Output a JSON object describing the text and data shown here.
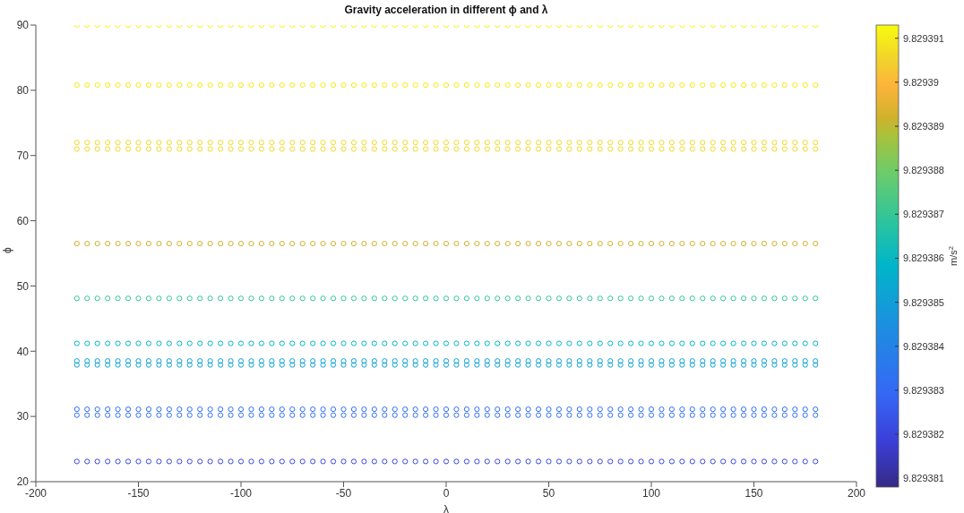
{
  "chart_data": {
    "type": "scatter",
    "title": "Gravity acceleration in different ϕ and λ",
    "xlabel": "λ",
    "ylabel": "ϕ",
    "clabel": "m/s$^{2}$",
    "marker": "circle",
    "xlim": [
      -200,
      200
    ],
    "xticks": [
      -200,
      -150,
      -100,
      -50,
      0,
      50,
      100,
      150,
      200
    ],
    "ylim": [
      20,
      90
    ],
    "yticks": [
      20,
      30,
      40,
      50,
      60,
      70,
      80,
      90
    ],
    "clim": [
      9.8293808,
      9.8293913
    ],
    "cticks": [
      9.829381,
      9.829382,
      9.829383,
      9.829384,
      9.829385,
      9.829386,
      9.829387,
      9.829388,
      9.829389,
      9.82939,
      9.829391
    ],
    "x": [
      -180,
      -175,
      -170,
      -165,
      -160,
      -155,
      -150,
      -145,
      -140,
      -135,
      -130,
      -125,
      -120,
      -115,
      -110,
      -105,
      -100,
      -95,
      -90,
      -85,
      -80,
      -75,
      -70,
      -65,
      -60,
      -55,
      -50,
      -45,
      -40,
      -35,
      -30,
      -25,
      -20,
      -15,
      -10,
      -5,
      0,
      5,
      10,
      15,
      20,
      25,
      30,
      35,
      40,
      45,
      50,
      55,
      60,
      65,
      70,
      75,
      80,
      85,
      90,
      95,
      100,
      105,
      110,
      115,
      120,
      125,
      130,
      135,
      140,
      145,
      150,
      155,
      160,
      165,
      170,
      175,
      180
    ],
    "series": [
      {
        "values": [
          90,
          90,
          90,
          90,
          90,
          90,
          90,
          90,
          90,
          90,
          90,
          90,
          90,
          90,
          90,
          90,
          90,
          90,
          90,
          90,
          90,
          90,
          90,
          90,
          90,
          90,
          90,
          90,
          90,
          90,
          90,
          90,
          90,
          90,
          90,
          90,
          90,
          90,
          90,
          90,
          90,
          90,
          90,
          90,
          90,
          90,
          90,
          90,
          90,
          90,
          90,
          90,
          90,
          90,
          90,
          90,
          90,
          90,
          90,
          90,
          90,
          90,
          90,
          90,
          90,
          90,
          90,
          90,
          90,
          90,
          90,
          90,
          90
        ],
        "cvalues": [
          9.8293912,
          9.8293912,
          9.8293912,
          9.8293912,
          9.8293912,
          9.8293912,
          9.8293912,
          9.8293912,
          9.8293912,
          9.8293912,
          9.8293912,
          9.8293912,
          9.8293912,
          9.8293912,
          9.8293912,
          9.8293912,
          9.8293912,
          9.8293912,
          9.8293912,
          9.8293912,
          9.8293912,
          9.8293912,
          9.8293912,
          9.8293912,
          9.8293912,
          9.8293912,
          9.8293912,
          9.8293912,
          9.8293912,
          9.8293912,
          9.8293912,
          9.8293912,
          9.8293912,
          9.8293912,
          9.8293912,
          9.8293912,
          9.8293912,
          9.8293912,
          9.8293912,
          9.8293912,
          9.8293912,
          9.8293912,
          9.8293912,
          9.8293912,
          9.8293912,
          9.8293912,
          9.8293912,
          9.8293912,
          9.8293912,
          9.8293912,
          9.8293912,
          9.8293912,
          9.8293912,
          9.8293912,
          9.8293912,
          9.8293912,
          9.8293912,
          9.8293912,
          9.8293912,
          9.8293912,
          9.8293912,
          9.8293912,
          9.8293912,
          9.8293912,
          9.8293912,
          9.8293912,
          9.8293912,
          9.8293912,
          9.8293912,
          9.8293912,
          9.8293912,
          9.8293912,
          9.8293912
        ]
      },
      {
        "values": [
          80.8,
          80.8,
          80.8,
          80.8,
          80.8,
          80.8,
          80.8,
          80.8,
          80.8,
          80.8,
          80.8,
          80.8,
          80.8,
          80.8,
          80.8,
          80.8,
          80.8,
          80.8,
          80.8,
          80.8,
          80.8,
          80.8,
          80.8,
          80.8,
          80.8,
          80.8,
          80.8,
          80.8,
          80.8,
          80.8,
          80.8,
          80.8,
          80.8,
          80.8,
          80.8,
          80.8,
          80.8,
          80.8,
          80.8,
          80.8,
          80.8,
          80.8,
          80.8,
          80.8,
          80.8,
          80.8,
          80.8,
          80.8,
          80.8,
          80.8,
          80.8,
          80.8,
          80.8,
          80.8,
          80.8,
          80.8,
          80.8,
          80.8,
          80.8,
          80.8,
          80.8,
          80.8,
          80.8,
          80.8,
          80.8,
          80.8,
          80.8,
          80.8,
          80.8,
          80.8,
          80.8,
          80.8,
          80.8
        ],
        "cvalues": [
          9.829391,
          9.829391,
          9.829391,
          9.829391,
          9.829391,
          9.829391,
          9.829391,
          9.829391,
          9.829391,
          9.829391,
          9.829391,
          9.829391,
          9.829391,
          9.829391,
          9.829391,
          9.829391,
          9.829391,
          9.829391,
          9.829391,
          9.829391,
          9.829391,
          9.829391,
          9.829391,
          9.829391,
          9.829391,
          9.829391,
          9.829391,
          9.829391,
          9.829391,
          9.829391,
          9.829391,
          9.829391,
          9.829391,
          9.829391,
          9.829391,
          9.829391,
          9.829391,
          9.829391,
          9.829391,
          9.829391,
          9.829391,
          9.829391,
          9.829391,
          9.829391,
          9.829391,
          9.829391,
          9.829391,
          9.829391,
          9.829391,
          9.829391,
          9.829391,
          9.829391,
          9.829391,
          9.829391,
          9.829391,
          9.829391,
          9.829391,
          9.829391,
          9.829391,
          9.829391,
          9.829391,
          9.829391,
          9.829391,
          9.829391,
          9.829391,
          9.829391,
          9.829391,
          9.829391,
          9.829391,
          9.829391,
          9.829391,
          9.829391,
          9.829391
        ]
      },
      {
        "values": [
          72,
          72,
          72,
          72,
          72,
          72,
          72,
          72,
          72,
          72,
          72,
          72,
          72,
          72,
          72,
          72,
          72,
          72,
          72,
          72,
          72,
          72,
          72,
          72,
          72,
          72,
          72,
          72,
          72,
          72,
          72,
          72,
          72,
          72,
          72,
          72,
          72,
          72,
          72,
          72,
          72,
          72,
          72,
          72,
          72,
          72,
          72,
          72,
          72,
          72,
          72,
          72,
          72,
          72,
          72,
          72,
          72,
          72,
          72,
          72,
          72,
          72,
          72,
          72,
          72,
          72,
          72,
          72,
          72,
          72,
          72,
          72,
          72
        ],
        "cvalues": [
          9.8293907,
          9.8293907,
          9.8293907,
          9.8293907,
          9.8293907,
          9.8293907,
          9.8293907,
          9.8293907,
          9.8293907,
          9.8293907,
          9.8293907,
          9.8293907,
          9.8293907,
          9.8293907,
          9.8293907,
          9.8293907,
          9.8293907,
          9.8293907,
          9.8293907,
          9.8293907,
          9.8293907,
          9.8293907,
          9.8293907,
          9.8293907,
          9.8293907,
          9.8293907,
          9.8293907,
          9.8293907,
          9.8293907,
          9.8293907,
          9.8293907,
          9.8293907,
          9.8293907,
          9.8293907,
          9.8293907,
          9.8293907,
          9.8293907,
          9.8293907,
          9.8293907,
          9.8293907,
          9.8293907,
          9.8293907,
          9.8293907,
          9.8293907,
          9.8293907,
          9.8293907,
          9.8293907,
          9.8293907,
          9.8293907,
          9.8293907,
          9.8293907,
          9.8293907,
          9.8293907,
          9.8293907,
          9.8293907,
          9.8293907,
          9.8293907,
          9.8293907,
          9.8293907,
          9.8293907,
          9.8293907,
          9.8293907,
          9.8293907,
          9.8293907,
          9.8293907,
          9.8293907,
          9.8293907,
          9.8293907,
          9.8293907,
          9.8293907,
          9.8293907,
          9.8293907,
          9.8293907
        ]
      },
      {
        "values": [
          71,
          71,
          71,
          71,
          71,
          71,
          71,
          71,
          71,
          71,
          71,
          71,
          71,
          71,
          71,
          71,
          71,
          71,
          71,
          71,
          71,
          71,
          71,
          71,
          71,
          71,
          71,
          71,
          71,
          71,
          71,
          71,
          71,
          71,
          71,
          71,
          71,
          71,
          71,
          71,
          71,
          71,
          71,
          71,
          71,
          71,
          71,
          71,
          71,
          71,
          71,
          71,
          71,
          71,
          71,
          71,
          71,
          71,
          71,
          71,
          71,
          71,
          71,
          71,
          71,
          71,
          71,
          71,
          71,
          71,
          71,
          71,
          71
        ],
        "cvalues": [
          9.8293906,
          9.8293906,
          9.8293906,
          9.8293906,
          9.8293906,
          9.8293906,
          9.8293906,
          9.8293906,
          9.8293906,
          9.8293906,
          9.8293906,
          9.8293906,
          9.8293906,
          9.8293906,
          9.8293906,
          9.8293906,
          9.8293906,
          9.8293906,
          9.8293906,
          9.8293906,
          9.8293906,
          9.8293906,
          9.8293906,
          9.8293906,
          9.8293906,
          9.8293906,
          9.8293906,
          9.8293906,
          9.8293906,
          9.8293906,
          9.8293906,
          9.8293906,
          9.8293906,
          9.8293906,
          9.8293906,
          9.8293906,
          9.8293906,
          9.8293906,
          9.8293906,
          9.8293906,
          9.8293906,
          9.8293906,
          9.8293906,
          9.8293906,
          9.8293906,
          9.8293906,
          9.8293906,
          9.8293906,
          9.8293906,
          9.8293906,
          9.8293906,
          9.8293906,
          9.8293906,
          9.8293906,
          9.8293906,
          9.8293906,
          9.8293906,
          9.8293906,
          9.8293906,
          9.8293906,
          9.8293906,
          9.8293906,
          9.8293906,
          9.8293906,
          9.8293906,
          9.8293906,
          9.8293906,
          9.8293906,
          9.8293906,
          9.8293906,
          9.8293906,
          9.8293906,
          9.8293906
        ]
      },
      {
        "values": [
          56.5,
          56.5,
          56.5,
          56.5,
          56.5,
          56.5,
          56.5,
          56.5,
          56.5,
          56.5,
          56.5,
          56.5,
          56.5,
          56.5,
          56.5,
          56.5,
          56.5,
          56.5,
          56.5,
          56.5,
          56.5,
          56.5,
          56.5,
          56.5,
          56.5,
          56.5,
          56.5,
          56.5,
          56.5,
          56.5,
          56.5,
          56.5,
          56.5,
          56.5,
          56.5,
          56.5,
          56.5,
          56.5,
          56.5,
          56.5,
          56.5,
          56.5,
          56.5,
          56.5,
          56.5,
          56.5,
          56.5,
          56.5,
          56.5,
          56.5,
          56.5,
          56.5,
          56.5,
          56.5,
          56.5,
          56.5,
          56.5,
          56.5,
          56.5,
          56.5,
          56.5,
          56.5,
          56.5,
          56.5,
          56.5,
          56.5,
          56.5,
          56.5,
          56.5,
          56.5,
          56.5,
          56.5,
          56.5
        ],
        "cvalues": [
          9.8293892,
          9.8293892,
          9.8293892,
          9.8293892,
          9.8293892,
          9.8293892,
          9.8293892,
          9.8293892,
          9.8293892,
          9.8293892,
          9.8293892,
          9.8293892,
          9.8293892,
          9.8293892,
          9.8293892,
          9.8293892,
          9.8293892,
          9.8293892,
          9.8293892,
          9.8293892,
          9.8293892,
          9.8293892,
          9.8293892,
          9.8293892,
          9.8293892,
          9.8293892,
          9.8293892,
          9.8293892,
          9.8293892,
          9.8293892,
          9.8293892,
          9.8293892,
          9.8293892,
          9.8293892,
          9.8293892,
          9.8293892,
          9.8293892,
          9.8293892,
          9.8293892,
          9.8293892,
          9.8293892,
          9.8293892,
          9.8293892,
          9.8293892,
          9.8293892,
          9.8293892,
          9.8293892,
          9.8293892,
          9.8293892,
          9.8293892,
          9.8293892,
          9.8293892,
          9.8293892,
          9.8293892,
          9.8293892,
          9.8293892,
          9.8293892,
          9.8293892,
          9.8293892,
          9.8293892,
          9.8293892,
          9.8293892,
          9.8293892,
          9.8293892,
          9.8293892,
          9.8293892,
          9.8293892,
          9.8293892,
          9.8293892,
          9.8293892,
          9.8293892,
          9.8293892,
          9.8293892
        ]
      },
      {
        "values": [
          48.1,
          48.1,
          48.1,
          48.1,
          48.1,
          48.1,
          48.1,
          48.1,
          48.1,
          48.1,
          48.1,
          48.1,
          48.1,
          48.1,
          48.1,
          48.1,
          48.1,
          48.1,
          48.1,
          48.1,
          48.1,
          48.1,
          48.1,
          48.1,
          48.1,
          48.1,
          48.1,
          48.1,
          48.1,
          48.1,
          48.1,
          48.1,
          48.1,
          48.1,
          48.1,
          48.1,
          48.1,
          48.1,
          48.1,
          48.1,
          48.1,
          48.1,
          48.1,
          48.1,
          48.1,
          48.1,
          48.1,
          48.1,
          48.1,
          48.1,
          48.1,
          48.1,
          48.1,
          48.1,
          48.1,
          48.1,
          48.1,
          48.1,
          48.1,
          48.1,
          48.1,
          48.1,
          48.1,
          48.1,
          48.1,
          48.1,
          48.1,
          48.1,
          48.1,
          48.1,
          48.1,
          48.1,
          48.1
        ],
        "cvalues": [
          9.8293869,
          9.8293869,
          9.8293869,
          9.8293869,
          9.8293869,
          9.8293869,
          9.8293869,
          9.8293869,
          9.8293869,
          9.8293869,
          9.8293869,
          9.8293869,
          9.8293869,
          9.8293869,
          9.8293869,
          9.8293869,
          9.8293869,
          9.8293869,
          9.8293869,
          9.8293869,
          9.8293869,
          9.8293869,
          9.8293869,
          9.8293869,
          9.8293869,
          9.8293869,
          9.8293869,
          9.8293869,
          9.8293869,
          9.8293869,
          9.8293869,
          9.8293869,
          9.8293869,
          9.8293869,
          9.8293869,
          9.8293869,
          9.8293869,
          9.8293869,
          9.8293869,
          9.8293869,
          9.8293869,
          9.8293869,
          9.8293869,
          9.8293869,
          9.8293869,
          9.8293869,
          9.8293869,
          9.8293869,
          9.8293869,
          9.8293869,
          9.8293869,
          9.8293869,
          9.8293869,
          9.8293869,
          9.8293869,
          9.8293869,
          9.8293869,
          9.8293869,
          9.8293869,
          9.8293869,
          9.8293869,
          9.8293869,
          9.8293869,
          9.8293869,
          9.8293869,
          9.8293869,
          9.8293869,
          9.8293869,
          9.8293869,
          9.8293869,
          9.8293869,
          9.8293869,
          9.8293869
        ]
      },
      {
        "values": [
          41.2,
          41.2,
          41.2,
          41.2,
          41.2,
          41.2,
          41.2,
          41.2,
          41.2,
          41.2,
          41.2,
          41.2,
          41.2,
          41.2,
          41.2,
          41.2,
          41.2,
          41.2,
          41.2,
          41.2,
          41.2,
          41.2,
          41.2,
          41.2,
          41.2,
          41.2,
          41.2,
          41.2,
          41.2,
          41.2,
          41.2,
          41.2,
          41.2,
          41.2,
          41.2,
          41.2,
          41.2,
          41.2,
          41.2,
          41.2,
          41.2,
          41.2,
          41.2,
          41.2,
          41.2,
          41.2,
          41.2,
          41.2,
          41.2,
          41.2,
          41.2,
          41.2,
          41.2,
          41.2,
          41.2,
          41.2,
          41.2,
          41.2,
          41.2,
          41.2,
          41.2,
          41.2,
          41.2,
          41.2,
          41.2,
          41.2,
          41.2,
          41.2,
          41.2,
          41.2,
          41.2,
          41.2,
          41.2
        ],
        "cvalues": [
          9.8293859,
          9.8293859,
          9.8293859,
          9.8293859,
          9.8293859,
          9.8293859,
          9.8293859,
          9.8293859,
          9.8293859,
          9.8293859,
          9.8293859,
          9.8293859,
          9.8293859,
          9.8293859,
          9.8293859,
          9.8293859,
          9.8293859,
          9.8293859,
          9.8293859,
          9.8293859,
          9.8293859,
          9.8293859,
          9.8293859,
          9.8293859,
          9.8293859,
          9.8293859,
          9.8293859,
          9.8293859,
          9.8293859,
          9.8293859,
          9.8293859,
          9.8293859,
          9.8293859,
          9.8293859,
          9.8293859,
          9.8293859,
          9.8293859,
          9.8293859,
          9.8293859,
          9.8293859,
          9.8293859,
          9.8293859,
          9.8293859,
          9.8293859,
          9.8293859,
          9.8293859,
          9.8293859,
          9.8293859,
          9.8293859,
          9.8293859,
          9.8293859,
          9.8293859,
          9.8293859,
          9.8293859,
          9.8293859,
          9.8293859,
          9.8293859,
          9.8293859,
          9.8293859,
          9.8293859,
          9.8293859,
          9.8293859,
          9.8293859,
          9.8293859,
          9.8293859,
          9.8293859,
          9.8293859,
          9.8293859,
          9.8293859,
          9.8293859,
          9.8293859,
          9.8293859,
          9.8293859
        ]
      },
      {
        "values": [
          38.5,
          38.5,
          38.5,
          38.5,
          38.5,
          38.5,
          38.5,
          38.5,
          38.5,
          38.5,
          38.5,
          38.5,
          38.5,
          38.5,
          38.5,
          38.5,
          38.5,
          38.5,
          38.5,
          38.5,
          38.5,
          38.5,
          38.5,
          38.5,
          38.5,
          38.5,
          38.5,
          38.5,
          38.5,
          38.5,
          38.5,
          38.5,
          38.5,
          38.5,
          38.5,
          38.5,
          38.5,
          38.5,
          38.5,
          38.5,
          38.5,
          38.5,
          38.5,
          38.5,
          38.5,
          38.5,
          38.5,
          38.5,
          38.5,
          38.5,
          38.5,
          38.5,
          38.5,
          38.5,
          38.5,
          38.5,
          38.5,
          38.5,
          38.5,
          38.5,
          38.5,
          38.5,
          38.5,
          38.5,
          38.5,
          38.5,
          38.5,
          38.5,
          38.5,
          38.5,
          38.5,
          38.5,
          38.5
        ],
        "cvalues": [
          9.8293852,
          9.8293852,
          9.8293852,
          9.8293852,
          9.8293852,
          9.8293852,
          9.8293852,
          9.8293852,
          9.8293852,
          9.8293852,
          9.8293852,
          9.8293852,
          9.8293852,
          9.8293852,
          9.8293852,
          9.8293852,
          9.8293852,
          9.8293852,
          9.8293852,
          9.8293852,
          9.8293852,
          9.8293852,
          9.8293852,
          9.8293852,
          9.8293852,
          9.8293852,
          9.8293852,
          9.8293852,
          9.8293852,
          9.8293852,
          9.8293852,
          9.8293852,
          9.8293852,
          9.8293852,
          9.8293852,
          9.8293852,
          9.8293852,
          9.8293852,
          9.8293852,
          9.8293852,
          9.8293852,
          9.8293852,
          9.8293852,
          9.8293852,
          9.8293852,
          9.8293852,
          9.8293852,
          9.8293852,
          9.8293852,
          9.8293852,
          9.8293852,
          9.8293852,
          9.8293852,
          9.8293852,
          9.8293852,
          9.8293852,
          9.8293852,
          9.8293852,
          9.8293852,
          9.8293852,
          9.8293852,
          9.8293852,
          9.8293852,
          9.8293852,
          9.8293852,
          9.8293852,
          9.8293852,
          9.8293852,
          9.8293852,
          9.8293852,
          9.8293852,
          9.8293852,
          9.8293852
        ]
      },
      {
        "values": [
          37.9,
          37.9,
          37.9,
          37.9,
          37.9,
          37.9,
          37.9,
          37.9,
          37.9,
          37.9,
          37.9,
          37.9,
          37.9,
          37.9,
          37.9,
          37.9,
          37.9,
          37.9,
          37.9,
          37.9,
          37.9,
          37.9,
          37.9,
          37.9,
          37.9,
          37.9,
          37.9,
          37.9,
          37.9,
          37.9,
          37.9,
          37.9,
          37.9,
          37.9,
          37.9,
          37.9,
          37.9,
          37.9,
          37.9,
          37.9,
          37.9,
          37.9,
          37.9,
          37.9,
          37.9,
          37.9,
          37.9,
          37.9,
          37.9,
          37.9,
          37.9,
          37.9,
          37.9,
          37.9,
          37.9,
          37.9,
          37.9,
          37.9,
          37.9,
          37.9,
          37.9,
          37.9,
          37.9,
          37.9,
          37.9,
          37.9,
          37.9,
          37.9,
          37.9,
          37.9,
          37.9,
          37.9,
          37.9
        ],
        "cvalues": [
          9.8293851,
          9.8293851,
          9.8293851,
          9.8293851,
          9.8293851,
          9.8293851,
          9.8293851,
          9.8293851,
          9.8293851,
          9.8293851,
          9.8293851,
          9.8293851,
          9.8293851,
          9.8293851,
          9.8293851,
          9.8293851,
          9.8293851,
          9.8293851,
          9.8293851,
          9.8293851,
          9.8293851,
          9.8293851,
          9.8293851,
          9.8293851,
          9.8293851,
          9.8293851,
          9.8293851,
          9.8293851,
          9.8293851,
          9.8293851,
          9.8293851,
          9.8293851,
          9.8293851,
          9.8293851,
          9.8293851,
          9.8293851,
          9.8293851,
          9.8293851,
          9.8293851,
          9.8293851,
          9.8293851,
          9.8293851,
          9.8293851,
          9.8293851,
          9.8293851,
          9.8293851,
          9.8293851,
          9.8293851,
          9.8293851,
          9.8293851,
          9.8293851,
          9.8293851,
          9.8293851,
          9.8293851,
          9.8293851,
          9.8293851,
          9.8293851,
          9.8293851,
          9.8293851,
          9.8293851,
          9.8293851,
          9.8293851,
          9.8293851,
          9.8293851,
          9.8293851,
          9.8293851,
          9.8293851,
          9.8293851,
          9.8293851,
          9.8293851,
          9.8293851,
          9.8293851,
          9.8293851
        ]
      },
      {
        "values": [
          31.1,
          31.1,
          31.1,
          31.1,
          31.1,
          31.1,
          31.1,
          31.1,
          31.1,
          31.1,
          31.1,
          31.1,
          31.1,
          31.1,
          31.1,
          31.1,
          31.1,
          31.1,
          31.1,
          31.1,
          31.1,
          31.1,
          31.1,
          31.1,
          31.1,
          31.1,
          31.1,
          31.1,
          31.1,
          31.1,
          31.1,
          31.1,
          31.1,
          31.1,
          31.1,
          31.1,
          31.1,
          31.1,
          31.1,
          31.1,
          31.1,
          31.1,
          31.1,
          31.1,
          31.1,
          31.1,
          31.1,
          31.1,
          31.1,
          31.1,
          31.1,
          31.1,
          31.1,
          31.1,
          31.1,
          31.1,
          31.1,
          31.1,
          31.1,
          31.1,
          31.1,
          31.1,
          31.1,
          31.1,
          31.1,
          31.1,
          31.1,
          31.1,
          31.1,
          31.1,
          31.1,
          31.1,
          31.1
        ],
        "cvalues": [
          9.8293833,
          9.8293833,
          9.8293833,
          9.8293833,
          9.8293833,
          9.8293833,
          9.8293833,
          9.8293833,
          9.8293833,
          9.8293833,
          9.8293833,
          9.8293833,
          9.8293833,
          9.8293833,
          9.8293833,
          9.8293833,
          9.8293833,
          9.8293833,
          9.8293833,
          9.8293833,
          9.8293833,
          9.8293833,
          9.8293833,
          9.8293833,
          9.8293833,
          9.8293833,
          9.8293833,
          9.8293833,
          9.8293833,
          9.8293833,
          9.8293833,
          9.8293833,
          9.8293833,
          9.8293833,
          9.8293833,
          9.8293833,
          9.8293833,
          9.8293833,
          9.8293833,
          9.8293833,
          9.8293833,
          9.8293833,
          9.8293833,
          9.8293833,
          9.8293833,
          9.8293833,
          9.8293833,
          9.8293833,
          9.8293833,
          9.8293833,
          9.8293833,
          9.8293833,
          9.8293833,
          9.8293833,
          9.8293833,
          9.8293833,
          9.8293833,
          9.8293833,
          9.8293833,
          9.8293833,
          9.8293833,
          9.8293833,
          9.8293833,
          9.8293833,
          9.8293833,
          9.8293833,
          9.8293833,
          9.8293833,
          9.8293833,
          9.8293833,
          9.8293833,
          9.8293833,
          9.8293833
        ]
      },
      {
        "values": [
          30.2,
          30.2,
          30.2,
          30.2,
          30.2,
          30.2,
          30.2,
          30.2,
          30.2,
          30.2,
          30.2,
          30.2,
          30.2,
          30.2,
          30.2,
          30.2,
          30.2,
          30.2,
          30.2,
          30.2,
          30.2,
          30.2,
          30.2,
          30.2,
          30.2,
          30.2,
          30.2,
          30.2,
          30.2,
          30.2,
          30.2,
          30.2,
          30.2,
          30.2,
          30.2,
          30.2,
          30.2,
          30.2,
          30.2,
          30.2,
          30.2,
          30.2,
          30.2,
          30.2,
          30.2,
          30.2,
          30.2,
          30.2,
          30.2,
          30.2,
          30.2,
          30.2,
          30.2,
          30.2,
          30.2,
          30.2,
          30.2,
          30.2,
          30.2,
          30.2,
          30.2,
          30.2,
          30.2,
          30.2,
          30.2,
          30.2,
          30.2,
          30.2,
          30.2,
          30.2,
          30.2,
          30.2,
          30.2
        ],
        "cvalues": [
          9.8293832,
          9.8293832,
          9.8293832,
          9.8293832,
          9.8293832,
          9.8293832,
          9.8293832,
          9.8293832,
          9.8293832,
          9.8293832,
          9.8293832,
          9.8293832,
          9.8293832,
          9.8293832,
          9.8293832,
          9.8293832,
          9.8293832,
          9.8293832,
          9.8293832,
          9.8293832,
          9.8293832,
          9.8293832,
          9.8293832,
          9.8293832,
          9.8293832,
          9.8293832,
          9.8293832,
          9.8293832,
          9.8293832,
          9.8293832,
          9.8293832,
          9.8293832,
          9.8293832,
          9.8293832,
          9.8293832,
          9.8293832,
          9.8293832,
          9.8293832,
          9.8293832,
          9.8293832,
          9.8293832,
          9.8293832,
          9.8293832,
          9.8293832,
          9.8293832,
          9.8293832,
          9.8293832,
          9.8293832,
          9.8293832,
          9.8293832,
          9.8293832,
          9.8293832,
          9.8293832,
          9.8293832,
          9.8293832,
          9.8293832,
          9.8293832,
          9.8293832,
          9.8293832,
          9.8293832,
          9.8293832,
          9.8293832,
          9.8293832,
          9.8293832,
          9.8293832,
          9.8293832,
          9.8293832,
          9.8293832,
          9.8293832,
          9.8293832,
          9.8293832,
          9.8293832,
          9.8293832
        ]
      },
      {
        "values": [
          23.1,
          23.1,
          23.1,
          23.1,
          23.1,
          23.1,
          23.1,
          23.1,
          23.1,
          23.1,
          23.1,
          23.1,
          23.1,
          23.1,
          23.1,
          23.1,
          23.1,
          23.1,
          23.1,
          23.1,
          23.1,
          23.1,
          23.1,
          23.1,
          23.1,
          23.1,
          23.1,
          23.1,
          23.1,
          23.1,
          23.1,
          23.1,
          23.1,
          23.1,
          23.1,
          23.1,
          23.1,
          23.1,
          23.1,
          23.1,
          23.1,
          23.1,
          23.1,
          23.1,
          23.1,
          23.1,
          23.1,
          23.1,
          23.1,
          23.1,
          23.1,
          23.1,
          23.1,
          23.1,
          23.1,
          23.1,
          23.1,
          23.1,
          23.1,
          23.1,
          23.1,
          23.1,
          23.1,
          23.1,
          23.1,
          23.1,
          23.1,
          23.1,
          23.1,
          23.1,
          23.1,
          23.1,
          23.1
        ],
        "cvalues": [
          9.829382,
          9.829382,
          9.829382,
          9.829382,
          9.829382,
          9.829382,
          9.829382,
          9.829382,
          9.829382,
          9.829382,
          9.829382,
          9.829382,
          9.829382,
          9.829382,
          9.829382,
          9.829382,
          9.829382,
          9.829382,
          9.829382,
          9.829382,
          9.829382,
          9.829382,
          9.829382,
          9.829382,
          9.829382,
          9.829382,
          9.829382,
          9.829382,
          9.829382,
          9.829382,
          9.829382,
          9.829382,
          9.829382,
          9.829382,
          9.829382,
          9.829382,
          9.829382,
          9.829382,
          9.829382,
          9.829382,
          9.829382,
          9.829382,
          9.829382,
          9.829382,
          9.829382,
          9.829382,
          9.829382,
          9.829382,
          9.829382,
          9.829382,
          9.829382,
          9.829382,
          9.829382,
          9.829382,
          9.829382,
          9.829382,
          9.829382,
          9.829382,
          9.829382,
          9.829382,
          9.829382,
          9.829382,
          9.829382,
          9.829382,
          9.829382,
          9.829382,
          9.829382,
          9.829382,
          9.829382,
          9.829382,
          9.829382,
          9.829382,
          9.829382
        ]
      }
    ]
  }
}
